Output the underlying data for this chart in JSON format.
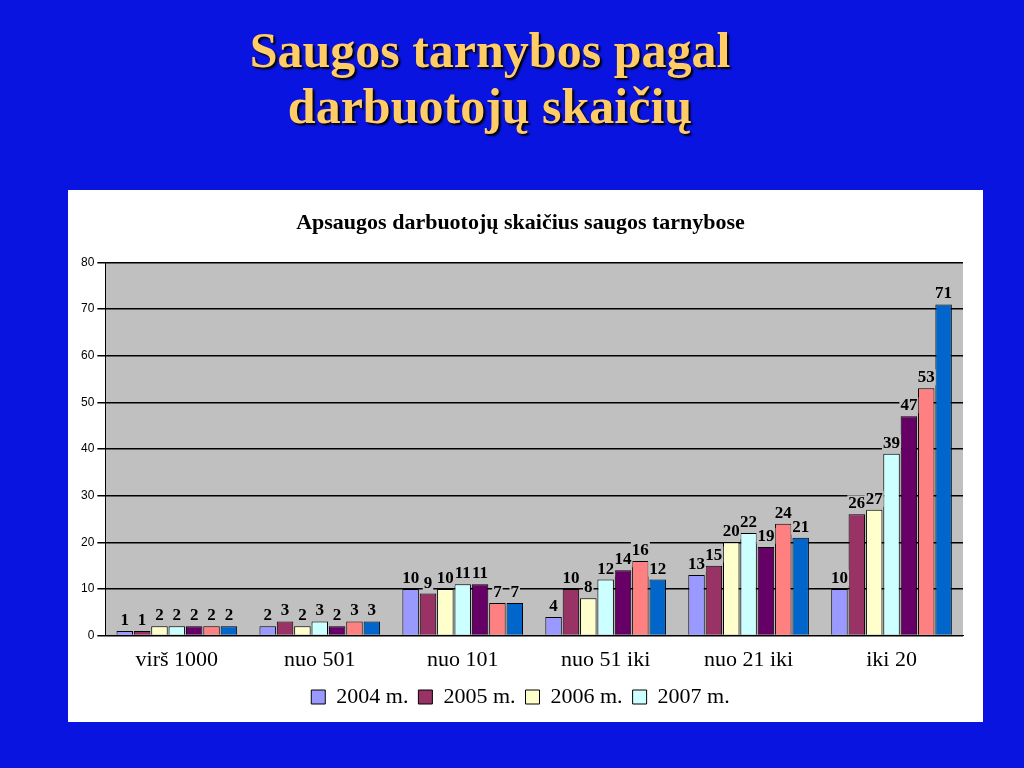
{
  "chart_data": {
    "type": "bar",
    "title": "Apsaugos darbuotojų skaičius saugos tarnybose",
    "categories": [
      "virš 1000",
      "nuo 501",
      "nuo 101",
      "nuo 51 iki",
      "nuo 21 iki",
      "iki 20"
    ],
    "series": [
      {
        "name": "2004 m.",
        "color": "#9999ff",
        "values": [
          1,
          2,
          10,
          4,
          13,
          10
        ]
      },
      {
        "name": "2005 m.",
        "color": "#993366",
        "values": [
          1,
          3,
          9,
          10,
          15,
          26
        ]
      },
      {
        "name": "2006 m.",
        "color": "#ffffcc",
        "values": [
          2,
          2,
          10,
          8,
          20,
          27
        ]
      },
      {
        "name": "2007 m.",
        "color": "#ccffff",
        "values": [
          2,
          3,
          11,
          12,
          22,
          39
        ]
      },
      {
        "color": "#660066",
        "values": [
          2,
          2,
          11,
          14,
          19,
          47
        ]
      },
      {
        "color": "#ff8080",
        "values": [
          2,
          3,
          7,
          16,
          24,
          53
        ]
      },
      {
        "color": "#0066cc",
        "values": [
          2,
          3,
          7,
          12,
          21,
          71
        ]
      }
    ],
    "ylim": [
      0,
      80
    ],
    "yticks": [
      0,
      10,
      20,
      30,
      40,
      50,
      60,
      70,
      80
    ],
    "grid": "y",
    "legend": "bottom",
    "data_labels": true,
    "annotations": [
      "Saugos tarnybos pagal darbuotojų skaičių"
    ]
  }
}
